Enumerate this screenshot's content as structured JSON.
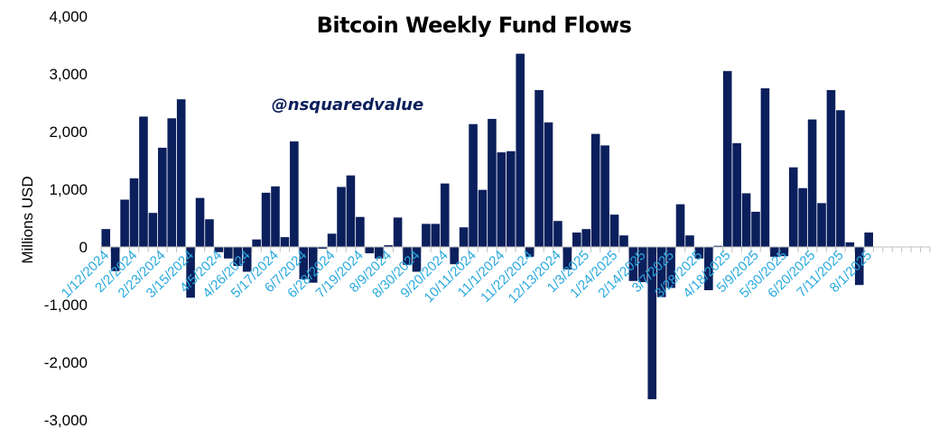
{
  "chart_data": {
    "type": "bar",
    "title": "Bitcoin Weekly Fund Flows",
    "watermark": "@nsquaredvalue",
    "ylabel": "Millions USD",
    "xlabel": "",
    "ylim": [
      -3000,
      4000
    ],
    "yticks": [
      4000,
      3000,
      2000,
      1000,
      0,
      -1000,
      -2000,
      -3000
    ],
    "ytick_labels": [
      "4,000",
      "3,000",
      "2,000",
      "1,000",
      "0",
      "-1,000",
      "-2,000",
      "-3,000"
    ],
    "grid": false,
    "legend": "none",
    "bar_color": "#0b1f5c",
    "tick_label_color": "#29a9df",
    "x_tick_labels": [
      "1/12/2024",
      "2/2/2024",
      "2/23/2024",
      "3/15/2024",
      "4/5/2024",
      "4/26/2024",
      "5/17/2024",
      "6/7/2024",
      "6/28/2024",
      "7/19/2024",
      "8/9/2024",
      "8/30/2024",
      "9/20/2024",
      "10/11/2024",
      "11/1/2024",
      "11/22/2024",
      "12/13/2024",
      "1/3/2025",
      "1/24/2025",
      "2/14/2025",
      "3/7/2025",
      "3/28/2025",
      "4/18/2025",
      "5/9/2025",
      "5/30/2025",
      "6/20/2025",
      "7/11/2025",
      "8/1/2025"
    ],
    "label_every": 3,
    "values": [
      310,
      -420,
      820,
      1190,
      2260,
      590,
      1720,
      2230,
      2560,
      -880,
      850,
      480,
      -90,
      -200,
      -330,
      -430,
      130,
      940,
      1050,
      170,
      1830,
      -560,
      -620,
      -30,
      230,
      1040,
      1240,
      520,
      -110,
      -200,
      30,
      510,
      -310,
      -430,
      400,
      400,
      1100,
      -300,
      340,
      2130,
      990,
      2220,
      1640,
      1660,
      3350,
      -170,
      2720,
      2160,
      450,
      -390,
      250,
      310,
      1960,
      1760,
      560,
      200,
      -590,
      -610,
      -2640,
      -870,
      -710,
      740,
      200,
      -200,
      -750,
      20,
      3050,
      1800,
      930,
      610,
      2750,
      -170,
      -160,
      1380,
      1020,
      2210,
      760,
      2720,
      2370,
      80,
      -660,
      250,
      0,
      0,
      0,
      0,
      0,
      0
    ]
  }
}
